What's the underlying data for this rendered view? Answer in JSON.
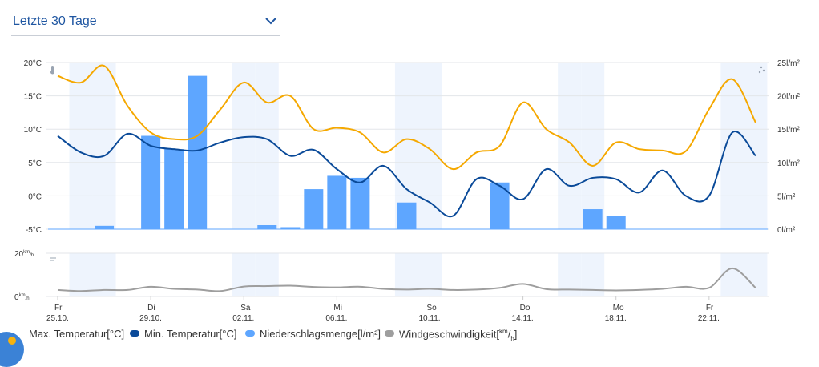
{
  "period_selector": {
    "label": "Letzte 30 Tage",
    "icon": "chevron-down-icon"
  },
  "chart_data": [
    {
      "type": "line+bar",
      "left_axis": {
        "ticks": [
          "20°C",
          "15°C",
          "10°C",
          "5°C",
          "0°C",
          "-5°C"
        ],
        "range": [
          -5,
          20
        ]
      },
      "right_axis": {
        "ticks": [
          "25l/m²",
          "20l/m²",
          "15l/m²",
          "10l/m²",
          "5l/m²",
          "0l/m²"
        ],
        "range": [
          0,
          25
        ]
      },
      "x_labels": [
        {
          "day": "Fr",
          "date": "25.10."
        },
        {
          "day": "Di",
          "date": "29.10."
        },
        {
          "day": "Sa",
          "date": "02.11."
        },
        {
          "day": "Mi",
          "date": "06.11."
        },
        {
          "day": "So",
          "date": "10.11."
        },
        {
          "day": "Do",
          "date": "14.11."
        },
        {
          "day": "Mo",
          "date": "18.11."
        },
        {
          "day": "Fr",
          "date": "22.11."
        }
      ],
      "days": 31,
      "series": [
        {
          "name": "Max. Temperatur[°C]",
          "color": "#f5a800",
          "axis": "left",
          "values": [
            18,
            17,
            19.5,
            13.5,
            9.5,
            8.5,
            9,
            13,
            17,
            14,
            15,
            10,
            10.2,
            9.5,
            6.5,
            8.5,
            7,
            4,
            6.5,
            7.5,
            14,
            10,
            8,
            4.5,
            8,
            7,
            6.8,
            6.7,
            13,
            17.5,
            11
          ]
        },
        {
          "name": "Min. Temperatur[°C]",
          "color": "#0a4a99",
          "axis": "left",
          "values": [
            9,
            6.5,
            6,
            9.3,
            7.5,
            7,
            6.8,
            8,
            8.8,
            8.5,
            6,
            6.9,
            4,
            2,
            4.5,
            1,
            -1,
            -3,
            2.5,
            1.5,
            -0.5,
            4,
            1.5,
            2.7,
            2.5,
            0.5,
            3.8,
            0,
            0,
            9.5,
            6
          ]
        },
        {
          "name": "Niederschlagsmenge[l/m²]",
          "color": "#5ea6ff",
          "axis": "right",
          "values": [
            0,
            0,
            0.5,
            0,
            14,
            12,
            23,
            0,
            0,
            0.6,
            0.3,
            6,
            8,
            7.7,
            0,
            4,
            0,
            0,
            0,
            7,
            0,
            0,
            0,
            3,
            2,
            0,
            0,
            0,
            0,
            0,
            0
          ]
        }
      ]
    },
    {
      "type": "line",
      "left_axis": {
        "ticks": [
          "20",
          "0"
        ],
        "unit_num": "km",
        "unit_den": "h",
        "range": [
          0,
          20
        ]
      },
      "series": [
        {
          "name": "Windgeschwindigkeit[km/h]",
          "color": "#9e9e9e",
          "values": [
            3,
            2.5,
            3,
            3,
            4.5,
            3.5,
            3.2,
            2.5,
            4.6,
            4.8,
            5,
            4.4,
            4.2,
            4.5,
            3.5,
            3.2,
            3.5,
            3,
            3.2,
            4,
            5.8,
            3.4,
            3.2,
            3,
            2.8,
            3,
            3.5,
            4.5,
            4,
            13,
            4
          ]
        }
      ]
    }
  ],
  "legend": [
    {
      "label": "Max. Temperatur[°C]",
      "color": "#f5a800"
    },
    {
      "label": "Min. Temperatur[°C]",
      "color": "#0a4a99"
    },
    {
      "label": "Niederschlagsmenge[l/m²]",
      "color": "#5ea6ff"
    },
    {
      "label_prefix": "Windgeschwindigkeit[",
      "unit_num": "km",
      "unit_den": "h",
      "label_suffix": "]",
      "color": "#9e9e9e"
    }
  ],
  "icons": {
    "temp": "thermometer-icon",
    "rain": "raindrops-icon",
    "wind": "wind-icon"
  }
}
